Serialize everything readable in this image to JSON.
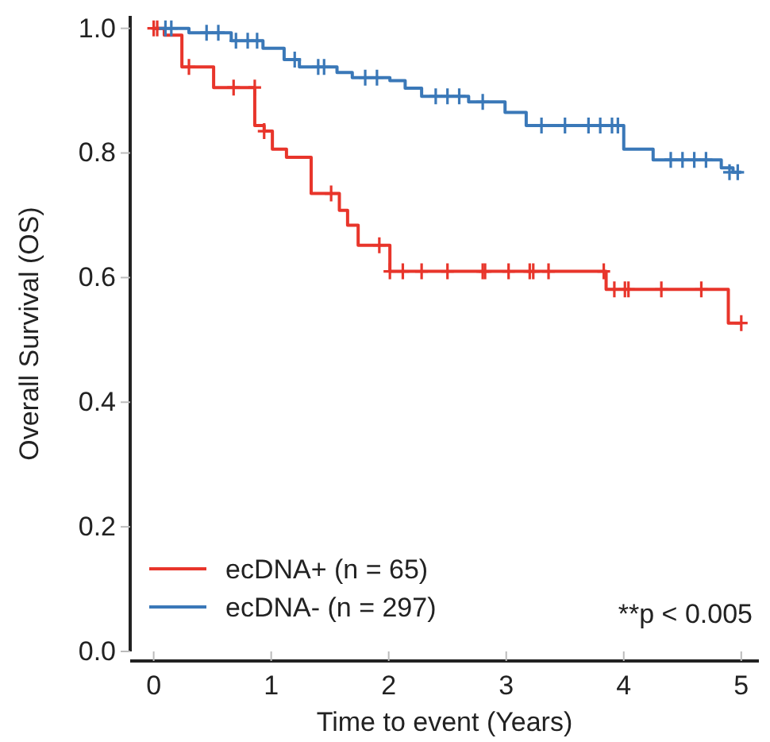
{
  "chart_data": {
    "type": "step",
    "xlabel": "Time to event (Years)",
    "ylabel": "Overall Survival (OS)",
    "xlim": [
      -0.2,
      5.15
    ],
    "xticks": [
      0,
      1,
      2,
      3,
      4,
      5
    ],
    "ylim": [
      0,
      1.02
    ],
    "yticks": [
      {
        "value": 0,
        "label": "0.0"
      },
      {
        "value": 0.2,
        "label": "0.2"
      },
      {
        "value": 0.4,
        "label": "0.4"
      },
      {
        "value": 0.6,
        "label": "0.6"
      },
      {
        "value": 0.8,
        "label": "0.8"
      },
      {
        "value": 1,
        "label": "1.0"
      }
    ],
    "grid": false,
    "legend": "bottom left",
    "annotations": [
      "**p < 0.005"
    ],
    "series": [
      {
        "name": "ecDNA+ (n = 65)",
        "color": "#e8352b",
        "x": [
          0,
          0.09,
          0.24,
          0.51,
          0.86,
          0.94,
          1.01,
          1.13,
          1.34,
          1.58,
          1.65,
          1.74,
          2.01,
          3.85,
          4.89,
          5.0
        ],
        "values": [
          1.0,
          0.989,
          0.938,
          0.905,
          0.844,
          0.835,
          0.806,
          0.793,
          0.735,
          0.708,
          0.684,
          0.652,
          0.61,
          0.581,
          0.527,
          0.527
        ]
      },
      {
        "name": "ecDNA- (n = 297)",
        "color": "#3a78b8",
        "x": [
          0,
          0.3,
          0.66,
          0.93,
          1.11,
          1.24,
          1.56,
          1.69,
          2.01,
          2.14,
          2.28,
          2.68,
          2.99,
          3.17,
          4.0,
          4.25,
          4.83,
          4.93,
          5.0
        ],
        "values": [
          1.0,
          0.993,
          0.98,
          0.968,
          0.95,
          0.938,
          0.929,
          0.921,
          0.916,
          0.904,
          0.891,
          0.882,
          0.865,
          0.844,
          0.806,
          0.789,
          0.776,
          0.769,
          0.769
        ]
      },
      {
        "type": "scatter",
        "marker": "cross",
        "color": "#e8352b",
        "x": [
          0.0,
          0.03,
          0.3,
          0.68,
          0.86,
          0.94,
          1.51,
          1.92,
          2.01,
          2.12,
          2.28,
          2.5,
          2.8,
          2.82,
          3.02,
          3.2,
          3.23,
          3.36,
          3.83,
          3.92,
          4.01,
          4.04,
          4.32,
          4.66,
          5.0
        ],
        "values": [
          1.0,
          1.0,
          0.938,
          0.905,
          0.905,
          0.835,
          0.735,
          0.652,
          0.61,
          0.61,
          0.61,
          0.61,
          0.61,
          0.61,
          0.61,
          0.61,
          0.61,
          0.61,
          0.61,
          0.581,
          0.581,
          0.581,
          0.581,
          0.581,
          0.527
        ]
      },
      {
        "type": "scatter",
        "marker": "cross",
        "color": "#3a78b8",
        "x": [
          0.1,
          0.15,
          0.45,
          0.55,
          0.7,
          0.8,
          0.88,
          1.2,
          1.4,
          1.45,
          1.8,
          1.9,
          2.4,
          2.5,
          2.6,
          2.8,
          3.3,
          3.5,
          3.7,
          3.8,
          3.9,
          3.95,
          4.4,
          4.5,
          4.6,
          4.7,
          4.9,
          4.97
        ],
        "values": [
          1.0,
          1.0,
          0.993,
          0.993,
          0.98,
          0.98,
          0.98,
          0.95,
          0.938,
          0.938,
          0.921,
          0.921,
          0.891,
          0.891,
          0.891,
          0.882,
          0.844,
          0.844,
          0.844,
          0.844,
          0.844,
          0.844,
          0.789,
          0.789,
          0.789,
          0.789,
          0.769,
          0.769
        ]
      }
    ]
  }
}
